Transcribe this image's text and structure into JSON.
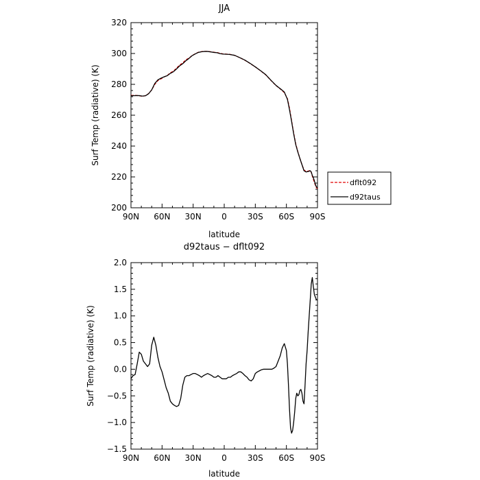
{
  "chart_data": [
    {
      "type": "line",
      "title": "JJA",
      "xlabel": "latitude",
      "ylabel": "Surf Temp (radiative) (K)",
      "xlim": [
        90,
        -90
      ],
      "ylim": [
        200,
        320
      ],
      "x_ticks": [
        90,
        60,
        30,
        0,
        -30,
        -60,
        -90
      ],
      "x_tick_labels": [
        "90N",
        "60N",
        "30N",
        "0",
        "30S",
        "60S",
        "90S"
      ],
      "y_ticks": [
        200,
        220,
        240,
        260,
        280,
        300,
        320
      ],
      "y_tick_labels": [
        "200",
        "220",
        "240",
        "260",
        "280",
        "300",
        "320"
      ],
      "legend_position": "right",
      "series": [
        {
          "name": "dflt092",
          "color": "#e00000",
          "style": "dashed",
          "x": [
            90,
            85,
            82,
            79,
            76,
            73,
            70,
            67,
            64,
            61,
            58,
            55,
            52,
            49,
            46,
            43,
            40,
            37,
            34,
            31,
            28,
            25,
            22,
            19,
            16,
            13,
            10,
            7,
            4,
            1,
            -2,
            -5,
            -10,
            -15,
            -20,
            -25,
            -30,
            -35,
            -40,
            -45,
            -50,
            -55,
            -58,
            -61,
            -63,
            -65,
            -67,
            -69,
            -71,
            -73,
            -75,
            -77,
            -79,
            -81,
            -83,
            -84,
            -85,
            -86,
            -87,
            -88,
            -89,
            -90
          ],
          "y": [
            272.8,
            272.8,
            272.6,
            272.2,
            272.7,
            274.0,
            276.4,
            280.0,
            282.5,
            283.6,
            284.8,
            285.7,
            287.5,
            288.6,
            290.5,
            292.5,
            293.9,
            295.9,
            297.0,
            298.7,
            299.8,
            300.8,
            301.2,
            301.4,
            301.4,
            301.1,
            300.8,
            300.6,
            300.1,
            299.7,
            299.6,
            299.5,
            298.8,
            297.3,
            295.6,
            293.5,
            291.3,
            288.8,
            286.2,
            282.6,
            279.2,
            276.5,
            274.6,
            270.7,
            264.5,
            256.5,
            248.5,
            241.5,
            236.5,
            232.0,
            228.0,
            224.5,
            223.5,
            223.8,
            224.2,
            223.0,
            220.5,
            218.5,
            216.5,
            214.5,
            213.0,
            212.5
          ]
        },
        {
          "name": "d92taus",
          "color": "#000000",
          "style": "solid",
          "x": [
            90,
            85,
            82,
            79,
            76,
            73,
            70,
            67,
            64,
            61,
            58,
            55,
            52,
            49,
            46,
            43,
            40,
            37,
            34,
            31,
            28,
            25,
            22,
            19,
            16,
            13,
            10,
            7,
            4,
            1,
            -2,
            -5,
            -10,
            -15,
            -20,
            -25,
            -30,
            -35,
            -40,
            -45,
            -50,
            -55,
            -58,
            -61,
            -63,
            -65,
            -67,
            -69,
            -71,
            -73,
            -75,
            -77,
            -79,
            -81,
            -83,
            -84,
            -85,
            -86,
            -87,
            -88,
            -89,
            -90
          ],
          "y": [
            272.6,
            272.7,
            272.7,
            272.4,
            272.6,
            273.9,
            276.4,
            280.6,
            282.9,
            284.0,
            284.9,
            285.6,
            287.1,
            288.2,
            290.0,
            292.0,
            293.4,
            295.3,
            296.8,
            298.6,
            299.7,
            300.7,
            301.1,
            301.3,
            301.3,
            301.0,
            300.7,
            300.5,
            299.9,
            299.6,
            299.5,
            299.4,
            298.8,
            297.3,
            295.7,
            293.6,
            291.3,
            288.9,
            286.3,
            282.7,
            279.3,
            276.7,
            275.0,
            270.3,
            263.5,
            256.0,
            248.0,
            241.0,
            236.2,
            232.0,
            228.0,
            224.0,
            223.2,
            223.5,
            224.0,
            223.2,
            221.0,
            219.5,
            217.5,
            215.0,
            213.5,
            213.0
          ]
        }
      ]
    },
    {
      "type": "line",
      "title": "d92taus − dflt092",
      "xlabel": "latitude",
      "ylabel": "Surf Temp (radiative) (K)",
      "xlim": [
        90,
        -90
      ],
      "ylim": [
        -1.5,
        2.0
      ],
      "x_ticks": [
        90,
        60,
        30,
        0,
        -30,
        -60,
        -90
      ],
      "x_tick_labels": [
        "90N",
        "60N",
        "30N",
        "0",
        "30S",
        "60S",
        "90S"
      ],
      "y_ticks": [
        -1.5,
        -1.0,
        -0.5,
        0.0,
        0.5,
        1.0,
        1.5,
        2.0
      ],
      "y_tick_labels": [
        "−1.5",
        "−1.0",
        "−0.5",
        "0.0",
        "0.5",
        "1.0",
        "1.5",
        "2.0"
      ],
      "series": [
        {
          "color": "#000000",
          "style": "solid",
          "x": [
            90,
            88,
            86,
            84,
            82,
            80,
            78,
            76,
            74,
            72,
            70,
            68,
            66,
            64,
            62,
            60,
            58,
            56,
            54,
            52,
            50,
            48,
            46,
            44,
            42,
            40,
            38,
            36,
            34,
            32,
            30,
            28,
            26,
            24,
            22,
            20,
            18,
            16,
            14,
            12,
            10,
            8,
            6,
            4,
            2,
            0,
            -2,
            -4,
            -6,
            -8,
            -10,
            -12,
            -14,
            -16,
            -18,
            -20,
            -22,
            -24,
            -26,
            -28,
            -30,
            -32,
            -34,
            -36,
            -38,
            -40,
            -42,
            -44,
            -46,
            -48,
            -50,
            -52,
            -54,
            -56,
            -58,
            -60,
            -61,
            -62,
            -63,
            -64,
            -65,
            -66,
            -67,
            -68,
            -69,
            -70,
            -71,
            -72,
            -73,
            -74,
            -75,
            -76,
            -77,
            -78,
            -79,
            -80,
            -81,
            -82,
            -83,
            -84,
            -85,
            -86,
            -87,
            -88,
            -89,
            -90
          ],
          "y": [
            -0.18,
            -0.12,
            -0.1,
            0.1,
            0.32,
            0.28,
            0.15,
            0.1,
            0.05,
            0.1,
            0.45,
            0.6,
            0.45,
            0.22,
            0.05,
            -0.05,
            -0.2,
            -0.35,
            -0.45,
            -0.6,
            -0.65,
            -0.68,
            -0.7,
            -0.68,
            -0.55,
            -0.3,
            -0.15,
            -0.12,
            -0.12,
            -0.1,
            -0.08,
            -0.08,
            -0.1,
            -0.12,
            -0.15,
            -0.12,
            -0.1,
            -0.08,
            -0.1,
            -0.12,
            -0.15,
            -0.15,
            -0.12,
            -0.15,
            -0.18,
            -0.18,
            -0.18,
            -0.15,
            -0.15,
            -0.12,
            -0.1,
            -0.08,
            -0.05,
            -0.05,
            -0.08,
            -0.12,
            -0.15,
            -0.2,
            -0.22,
            -0.18,
            -0.08,
            -0.05,
            -0.03,
            -0.01,
            0.0,
            0.0,
            0.0,
            0.0,
            0.0,
            0.02,
            0.05,
            0.15,
            0.25,
            0.4,
            0.48,
            0.35,
            0.1,
            -0.3,
            -0.75,
            -1.1,
            -1.2,
            -1.15,
            -1.0,
            -0.8,
            -0.55,
            -0.45,
            -0.5,
            -0.48,
            -0.4,
            -0.38,
            -0.45,
            -0.6,
            -0.65,
            -0.3,
            0.1,
            0.35,
            0.7,
            1.0,
            1.3,
            1.6,
            1.72,
            1.55,
            1.4,
            1.35,
            1.3,
            1.3
          ]
        }
      ]
    }
  ]
}
